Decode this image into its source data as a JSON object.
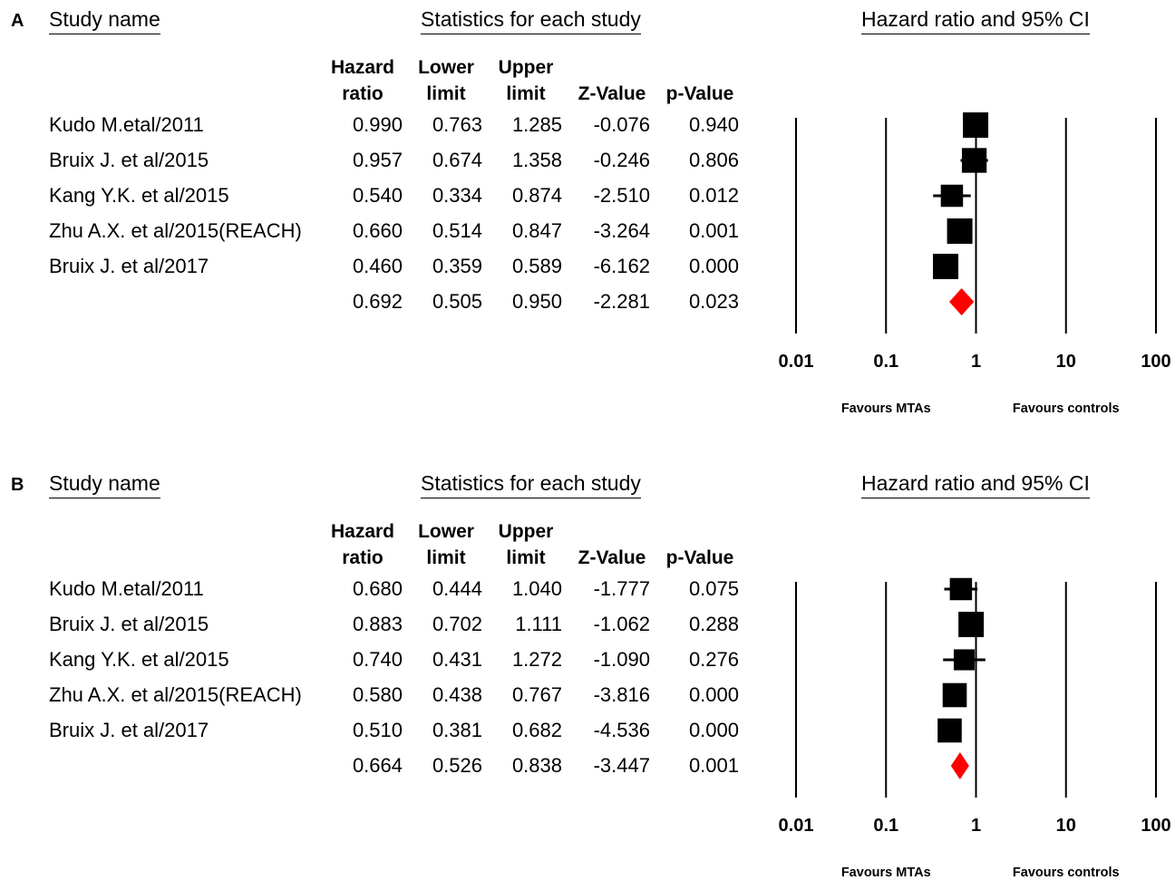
{
  "columns": {
    "study": "Study name",
    "stats_header": "Statistics for each study",
    "plot_header": "Hazard ratio and 95% CI",
    "hr": [
      "Hazard",
      "ratio"
    ],
    "lower": [
      "Lower",
      "limit"
    ],
    "upper": [
      "Upper",
      "limit"
    ],
    "z": [
      "",
      "Z-Value"
    ],
    "p": [
      "",
      "p-Value"
    ]
  },
  "axis": {
    "scale": "log",
    "ticks": [
      0.01,
      0.1,
      1,
      10,
      100
    ],
    "tick_labels": [
      "0.01",
      "0.1",
      "1",
      "10",
      "100"
    ],
    "favours_left": "Favours MTAs",
    "favours_right": "Favours controls"
  },
  "colors": {
    "square": "#000000",
    "diamond": "#ff0000"
  },
  "chart_data": [
    {
      "type": "forest",
      "panel": "A",
      "x_scale": "log",
      "xlim": [
        0.01,
        100
      ],
      "studies": [
        {
          "name": "Kudo M.etal/2011",
          "hr": "0.990",
          "lower": "0.763",
          "upper": "1.285",
          "z": "-0.076",
          "p": "0.940",
          "weight": 1.0
        },
        {
          "name": "Bruix J. et al/2015",
          "hr": "0.957",
          "lower": "0.674",
          "upper": "1.358",
          "z": "-0.246",
          "p": "0.806",
          "weight": 0.95
        },
        {
          "name": "Kang Y.K. et al/2015",
          "hr": "0.540",
          "lower": "0.334",
          "upper": "0.874",
          "z": "-2.510",
          "p": "0.012",
          "weight": 0.75
        },
        {
          "name": "Zhu A.X. et al/2015(REACH)",
          "hr": "0.660",
          "lower": "0.514",
          "upper": "0.847",
          "z": "-3.264",
          "p": "0.001",
          "weight": 1.0
        },
        {
          "name": "Bruix J. et al/2017",
          "hr": "0.460",
          "lower": "0.359",
          "upper": "0.589",
          "z": "-6.162",
          "p": "0.000",
          "weight": 1.0
        }
      ],
      "pooled": {
        "hr": "0.692",
        "lower": "0.505",
        "upper": "0.950",
        "z": "-2.281",
        "p": "0.023"
      }
    },
    {
      "type": "forest",
      "panel": "B",
      "x_scale": "log",
      "xlim": [
        0.01,
        100
      ],
      "studies": [
        {
          "name": "Kudo M.etal/2011",
          "hr": "0.680",
          "lower": "0.444",
          "upper": "1.040",
          "z": "-1.777",
          "p": "0.075",
          "weight": 0.75
        },
        {
          "name": "Bruix J. et al/2015",
          "hr": "0.883",
          "lower": "0.702",
          "upper": "1.111",
          "z": "-1.062",
          "p": "0.288",
          "weight": 1.0
        },
        {
          "name": "Kang Y.K. et al/2015",
          "hr": "0.740",
          "lower": "0.431",
          "upper": "1.272",
          "z": "-1.090",
          "p": "0.276",
          "weight": 0.65
        },
        {
          "name": "Zhu A.X. et al/2015(REACH)",
          "hr": "0.580",
          "lower": "0.438",
          "upper": "0.767",
          "z": "-3.816",
          "p": "0.000",
          "weight": 0.9
        },
        {
          "name": "Bruix J. et al/2017",
          "hr": "0.510",
          "lower": "0.381",
          "upper": "0.682",
          "z": "-4.536",
          "p": "0.000",
          "weight": 0.9
        }
      ],
      "pooled": {
        "hr": "0.664",
        "lower": "0.526",
        "upper": "0.838",
        "z": "-3.447",
        "p": "0.001"
      }
    }
  ]
}
